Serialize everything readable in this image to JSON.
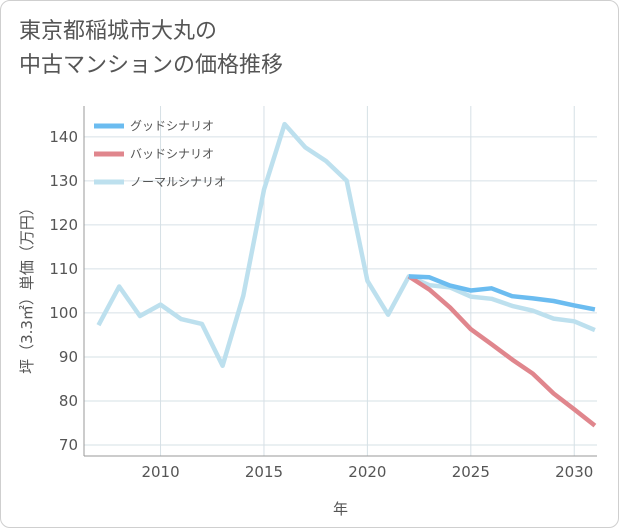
{
  "chart_data": {
    "type": "line",
    "title": "東京都稲城市大丸の\n中古マンションの価格推移",
    "xlabel": "年",
    "ylabel": "坪（3.3㎡）単価（万円）",
    "xlim": [
      2006.3,
      2031.1
    ],
    "ylim": [
      67.5,
      147
    ],
    "xticks": [
      2010,
      2015,
      2020,
      2025,
      2030
    ],
    "yticks": [
      70,
      80,
      90,
      100,
      110,
      120,
      130,
      140
    ],
    "grid": true,
    "legend_position": "top-left",
    "series": [
      {
        "name": "グッドシナリオ",
        "color": "#6bbcf0",
        "x": [
          2022,
          2023,
          2024,
          2025,
          2026,
          2027,
          2028,
          2029,
          2030,
          2031
        ],
        "y": [
          108.3,
          108.1,
          106.2,
          105.1,
          105.6,
          103.8,
          103.3,
          102.7,
          101.7,
          100.8
        ]
      },
      {
        "name": "バッドシナリオ",
        "color": "#e0868d",
        "x": [
          2022,
          2023,
          2024,
          2025,
          2026,
          2027,
          2028,
          2029,
          2030,
          2031
        ],
        "y": [
          108.3,
          105.3,
          101.2,
          96.3,
          92.9,
          89.4,
          86.2,
          81.7,
          78.1,
          74.4
        ]
      },
      {
        "name": "ノーマルシナリオ",
        "color": "#bde0ee",
        "x": [
          2007,
          2008,
          2009,
          2010,
          2011,
          2012,
          2013,
          2014,
          2015,
          2016,
          2017,
          2018,
          2019,
          2020,
          2021,
          2022,
          2023,
          2024,
          2025,
          2026,
          2027,
          2028,
          2029,
          2030,
          2031
        ],
        "y": [
          97.2,
          106.0,
          99.3,
          101.9,
          98.6,
          97.5,
          88.0,
          103.9,
          128.0,
          142.9,
          137.6,
          134.5,
          130.0,
          107.3,
          99.6,
          108.3,
          106.3,
          105.8,
          103.7,
          103.2,
          101.6,
          100.5,
          98.7,
          98.1,
          96.1
        ]
      }
    ]
  }
}
